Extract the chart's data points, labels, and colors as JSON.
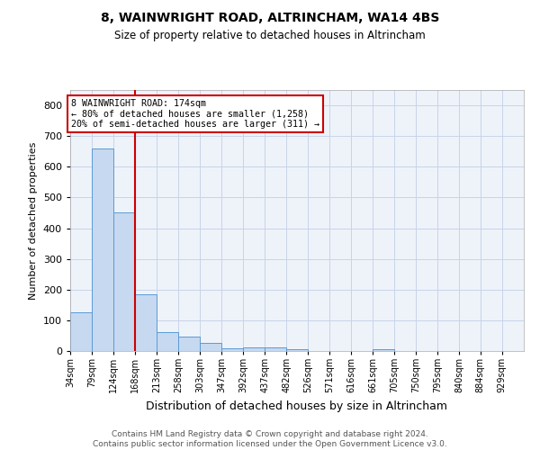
{
  "title": "8, WAINWRIGHT ROAD, ALTRINCHAM, WA14 4BS",
  "subtitle": "Size of property relative to detached houses in Altrincham",
  "xlabel": "Distribution of detached houses by size in Altrincham",
  "ylabel": "Number of detached properties",
  "footer_line1": "Contains HM Land Registry data © Crown copyright and database right 2024.",
  "footer_line2": "Contains public sector information licensed under the Open Government Licence v3.0.",
  "bin_labels": [
    "34sqm",
    "79sqm",
    "124sqm",
    "168sqm",
    "213sqm",
    "258sqm",
    "303sqm",
    "347sqm",
    "392sqm",
    "437sqm",
    "482sqm",
    "526sqm",
    "571sqm",
    "616sqm",
    "661sqm",
    "705sqm",
    "750sqm",
    "795sqm",
    "840sqm",
    "884sqm",
    "929sqm"
  ],
  "bin_edges": [
    34,
    79,
    124,
    168,
    213,
    258,
    303,
    347,
    392,
    437,
    482,
    526,
    571,
    616,
    661,
    705,
    750,
    795,
    840,
    884,
    929
  ],
  "bar_heights": [
    125,
    660,
    450,
    185,
    63,
    47,
    27,
    10,
    13,
    12,
    7,
    0,
    0,
    0,
    7,
    0,
    0,
    0,
    0,
    0,
    0
  ],
  "bar_color": "#c6d9f0",
  "bar_edge_color": "#5b9bd5",
  "grid_color": "#c8d4e8",
  "background_color": "#eef3fa",
  "annotation_line1": "8 WAINWRIGHT ROAD: 174sqm",
  "annotation_line2": "← 80% of detached houses are smaller (1,258)",
  "annotation_line3": "20% of semi-detached houses are larger (311) →",
  "red_line_x": 168,
  "red_box_color": "#cc0000",
  "ylim": [
    0,
    850
  ],
  "yticks": [
    0,
    100,
    200,
    300,
    400,
    500,
    600,
    700,
    800
  ]
}
